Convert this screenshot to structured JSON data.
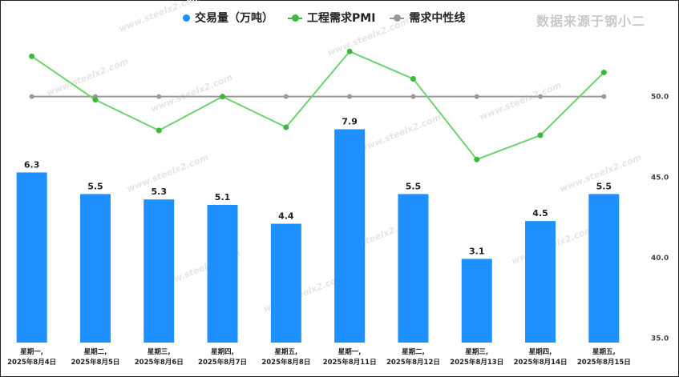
{
  "legend": {
    "bars_label": "交易量（万吨）",
    "line_label": "工程需求PMI",
    "ref_label": "需求中性线"
  },
  "source_text": "数据来源于钢小二",
  "watermark_text": "www.steelx2.com",
  "colors": {
    "bars": "#1e90ff",
    "pmi_line": "#6ed36e",
    "pmi_dot": "#3cb83c",
    "ref_line": "#999999"
  },
  "chart_data": {
    "type": "bar+line",
    "categories": [
      [
        "星期一,",
        "2025年8月4日"
      ],
      [
        "星期二,",
        "2025年8月5日"
      ],
      [
        "星期三,",
        "2025年8月6日"
      ],
      [
        "星期四,",
        "2025年8月7日"
      ],
      [
        "星期五,",
        "2025年8月8日"
      ],
      [
        "星期一,",
        "2025年8月11日"
      ],
      [
        "星期二,",
        "2025年8月12日"
      ],
      [
        "星期三,",
        "2025年8月13日"
      ],
      [
        "星期四,",
        "2025年8月14日"
      ],
      [
        "星期五,",
        "2025年8月15日"
      ]
    ],
    "series": [
      {
        "name": "交易量（万吨）",
        "type": "bar",
        "values": [
          6.3,
          5.5,
          5.3,
          5.1,
          4.4,
          7.9,
          5.5,
          3.1,
          4.5,
          5.5
        ],
        "labels": [
          "6.3",
          "5.5",
          "5.3",
          "5.1",
          "4.4",
          "7.9",
          "5.5",
          "3.1",
          "4.5",
          "5.5"
        ]
      },
      {
        "name": "工程需求PMI",
        "type": "line",
        "axis": "right",
        "values": [
          52.5,
          49.8,
          47.9,
          50.0,
          48.1,
          52.8,
          51.1,
          46.1,
          47.6,
          51.5
        ]
      },
      {
        "name": "需求中性线",
        "type": "line",
        "axis": "right",
        "values": [
          50,
          50,
          50,
          50,
          50,
          50,
          50,
          50,
          50,
          50
        ]
      }
    ],
    "bar_axis_range": [
      0,
      11.5
    ],
    "right_axis": {
      "ticks": [
        "50.0",
        "45.0",
        "40.0",
        "35.0"
      ],
      "tick_values": [
        50,
        45,
        40,
        35
      ],
      "range": [
        33,
        55
      ]
    },
    "grid": false,
    "legend_position": "top-center"
  }
}
